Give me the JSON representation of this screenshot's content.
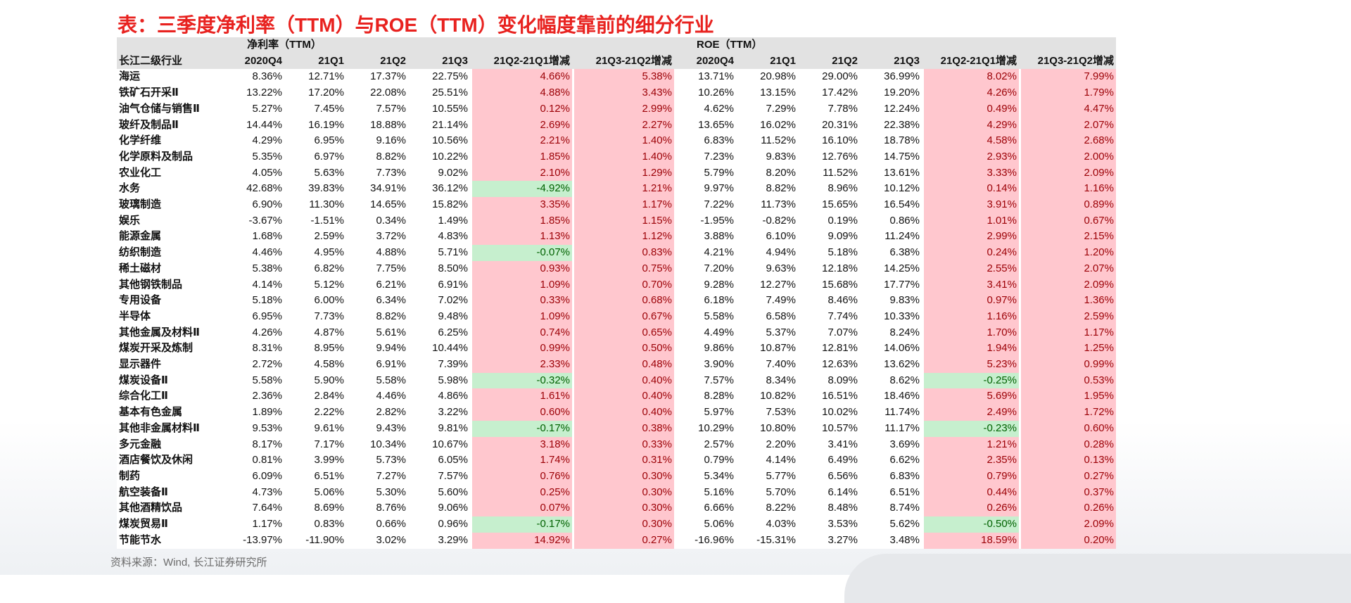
{
  "title": "表：三季度净利率（TTM）与ROE（TTM）变化幅度靠前的细分行业",
  "source": "资料来源：Wind, 长江证券研究所",
  "colors": {
    "title_red": "#e8221f",
    "increase_fill": "#ffc7ce",
    "increase_text": "#9c0006",
    "decrease_fill": "#c6efce",
    "decrease_text": "#006100",
    "header_fill": "#e2e2e2"
  },
  "table": {
    "group_headers": [
      "净利率（TTM）",
      "ROE（TTM）"
    ],
    "columns": [
      "长江二级行业",
      "2020Q4",
      "21Q1",
      "21Q2",
      "21Q3",
      "21Q2-21Q1增减",
      "21Q3-21Q2增减",
      "2020Q4",
      "21Q1",
      "21Q2",
      "21Q3",
      "21Q2-21Q1增减",
      "21Q3-21Q2增减"
    ],
    "rows": [
      [
        "海运",
        "8.36%",
        "12.71%",
        "17.37%",
        "22.75%",
        "4.66%",
        "5.38%",
        "13.71%",
        "20.98%",
        "29.00%",
        "36.99%",
        "8.02%",
        "7.99%"
      ],
      [
        "铁矿石开采Ⅱ",
        "13.22%",
        "17.20%",
        "22.08%",
        "25.51%",
        "4.88%",
        "3.43%",
        "10.26%",
        "13.15%",
        "17.42%",
        "19.20%",
        "4.26%",
        "1.79%"
      ],
      [
        "油气仓储与销售Ⅱ",
        "5.27%",
        "7.45%",
        "7.57%",
        "10.55%",
        "0.12%",
        "2.99%",
        "4.62%",
        "7.29%",
        "7.78%",
        "12.24%",
        "0.49%",
        "4.47%"
      ],
      [
        "玻纤及制品Ⅱ",
        "14.44%",
        "16.19%",
        "18.88%",
        "21.14%",
        "2.69%",
        "2.27%",
        "13.65%",
        "16.02%",
        "20.31%",
        "22.38%",
        "4.29%",
        "2.07%"
      ],
      [
        "化学纤维",
        "4.29%",
        "6.95%",
        "9.16%",
        "10.56%",
        "2.21%",
        "1.40%",
        "6.83%",
        "11.52%",
        "16.10%",
        "18.78%",
        "4.58%",
        "2.68%"
      ],
      [
        "化学原料及制品",
        "5.35%",
        "6.97%",
        "8.82%",
        "10.22%",
        "1.85%",
        "1.40%",
        "7.23%",
        "9.83%",
        "12.76%",
        "14.75%",
        "2.93%",
        "2.00%"
      ],
      [
        "农业化工",
        "4.05%",
        "5.63%",
        "7.73%",
        "9.02%",
        "2.10%",
        "1.29%",
        "5.79%",
        "8.20%",
        "11.52%",
        "13.61%",
        "3.33%",
        "2.09%"
      ],
      [
        "水务",
        "42.68%",
        "39.83%",
        "34.91%",
        "36.12%",
        "-4.92%",
        "1.21%",
        "9.97%",
        "8.82%",
        "8.96%",
        "10.12%",
        "0.14%",
        "1.16%"
      ],
      [
        "玻璃制造",
        "6.90%",
        "11.30%",
        "14.65%",
        "15.82%",
        "3.35%",
        "1.17%",
        "7.22%",
        "11.73%",
        "15.65%",
        "16.54%",
        "3.91%",
        "0.89%"
      ],
      [
        "娱乐",
        "-3.67%",
        "-1.51%",
        "0.34%",
        "1.49%",
        "1.85%",
        "1.15%",
        "-1.95%",
        "-0.82%",
        "0.19%",
        "0.86%",
        "1.01%",
        "0.67%"
      ],
      [
        "能源金属",
        "1.68%",
        "2.59%",
        "3.72%",
        "4.83%",
        "1.13%",
        "1.12%",
        "3.88%",
        "6.10%",
        "9.09%",
        "11.24%",
        "2.99%",
        "2.15%"
      ],
      [
        "纺织制造",
        "4.46%",
        "4.95%",
        "4.88%",
        "5.71%",
        "-0.07%",
        "0.83%",
        "4.21%",
        "4.94%",
        "5.18%",
        "6.38%",
        "0.24%",
        "1.20%"
      ],
      [
        "稀土磁材",
        "5.38%",
        "6.82%",
        "7.75%",
        "8.50%",
        "0.93%",
        "0.75%",
        "7.20%",
        "9.63%",
        "12.18%",
        "14.25%",
        "2.55%",
        "2.07%"
      ],
      [
        "其他钢铁制品",
        "4.14%",
        "5.12%",
        "6.21%",
        "6.91%",
        "1.09%",
        "0.70%",
        "9.28%",
        "12.27%",
        "15.68%",
        "17.77%",
        "3.41%",
        "2.09%"
      ],
      [
        "专用设备",
        "5.18%",
        "6.00%",
        "6.34%",
        "7.02%",
        "0.33%",
        "0.68%",
        "6.18%",
        "7.49%",
        "8.46%",
        "9.83%",
        "0.97%",
        "1.36%"
      ],
      [
        "半导体",
        "6.95%",
        "7.73%",
        "8.82%",
        "9.48%",
        "1.09%",
        "0.67%",
        "5.58%",
        "6.58%",
        "7.74%",
        "10.33%",
        "1.16%",
        "2.59%"
      ],
      [
        "其他金属及材料Ⅱ",
        "4.26%",
        "4.87%",
        "5.61%",
        "6.25%",
        "0.74%",
        "0.65%",
        "4.49%",
        "5.37%",
        "7.07%",
        "8.24%",
        "1.70%",
        "1.17%"
      ],
      [
        "煤炭开采及炼制",
        "8.31%",
        "8.95%",
        "9.94%",
        "10.44%",
        "0.99%",
        "0.50%",
        "9.86%",
        "10.87%",
        "12.81%",
        "14.06%",
        "1.94%",
        "1.25%"
      ],
      [
        "显示器件",
        "2.72%",
        "4.58%",
        "6.91%",
        "7.39%",
        "2.33%",
        "0.48%",
        "3.90%",
        "7.40%",
        "12.63%",
        "13.62%",
        "5.23%",
        "0.99%"
      ],
      [
        "煤炭设备Ⅱ",
        "5.58%",
        "5.90%",
        "5.58%",
        "5.98%",
        "-0.32%",
        "0.40%",
        "7.57%",
        "8.34%",
        "8.09%",
        "8.62%",
        "-0.25%",
        "0.53%"
      ],
      [
        "综合化工Ⅱ",
        "2.36%",
        "2.84%",
        "4.46%",
        "4.86%",
        "1.61%",
        "0.40%",
        "8.28%",
        "10.82%",
        "16.51%",
        "18.46%",
        "5.69%",
        "1.95%"
      ],
      [
        "基本有色金属",
        "1.89%",
        "2.22%",
        "2.82%",
        "3.22%",
        "0.60%",
        "0.40%",
        "5.97%",
        "7.53%",
        "10.02%",
        "11.74%",
        "2.49%",
        "1.72%"
      ],
      [
        "其他非金属材料Ⅱ",
        "9.53%",
        "9.61%",
        "9.43%",
        "9.81%",
        "-0.17%",
        "0.38%",
        "10.29%",
        "10.80%",
        "10.57%",
        "11.17%",
        "-0.23%",
        "0.60%"
      ],
      [
        "多元金融",
        "8.17%",
        "7.17%",
        "10.34%",
        "10.67%",
        "3.18%",
        "0.33%",
        "2.57%",
        "2.20%",
        "3.41%",
        "3.69%",
        "1.21%",
        "0.28%"
      ],
      [
        "酒店餐饮及休闲",
        "0.81%",
        "3.99%",
        "5.73%",
        "6.05%",
        "1.74%",
        "0.31%",
        "0.79%",
        "4.14%",
        "6.49%",
        "6.62%",
        "2.35%",
        "0.13%"
      ],
      [
        "制药",
        "6.09%",
        "6.51%",
        "7.27%",
        "7.57%",
        "0.76%",
        "0.30%",
        "5.34%",
        "5.77%",
        "6.56%",
        "6.83%",
        "0.79%",
        "0.27%"
      ],
      [
        "航空装备Ⅱ",
        "4.73%",
        "5.06%",
        "5.30%",
        "5.60%",
        "0.25%",
        "0.30%",
        "5.16%",
        "5.70%",
        "6.14%",
        "6.51%",
        "0.44%",
        "0.37%"
      ],
      [
        "其他酒精饮品",
        "7.64%",
        "8.69%",
        "8.76%",
        "9.06%",
        "0.07%",
        "0.30%",
        "6.66%",
        "8.22%",
        "8.48%",
        "8.74%",
        "0.26%",
        "0.26%"
      ],
      [
        "煤炭贸易Ⅱ",
        "1.17%",
        "0.83%",
        "0.66%",
        "0.96%",
        "-0.17%",
        "0.30%",
        "5.06%",
        "4.03%",
        "3.53%",
        "5.62%",
        "-0.50%",
        "2.09%"
      ],
      [
        "节能节水",
        "-13.97%",
        "-11.90%",
        "3.02%",
        "3.29%",
        "14.92%",
        "0.27%",
        "-16.96%",
        "-15.31%",
        "3.27%",
        "3.48%",
        "18.59%",
        "0.20%"
      ]
    ]
  }
}
